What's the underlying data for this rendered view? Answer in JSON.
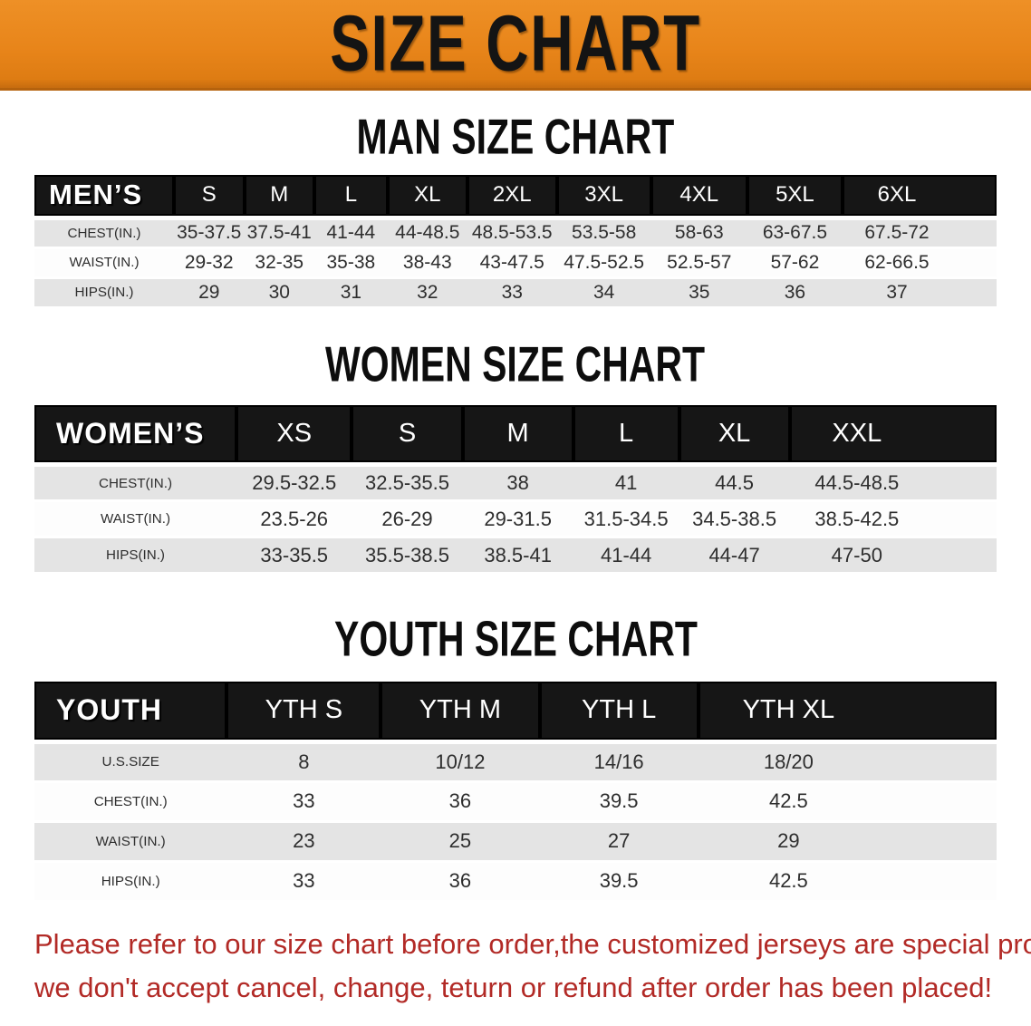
{
  "banner": {
    "title": "SIZE CHART",
    "bg_color": "#e8851a",
    "text_color": "#141414"
  },
  "sections": [
    {
      "id": "men",
      "heading": "MAN SIZE CHART",
      "header_label": "MEN’S",
      "columns": [
        "S",
        "M",
        "L",
        "XL",
        "2XL",
        "3XL",
        "4XL",
        "5XL",
        "6XL"
      ],
      "rows": [
        {
          "label": "CHEST(IN.)",
          "values": [
            "35-37.5",
            "37.5-41",
            "41-44",
            "44-48.5",
            "48.5-53.5",
            "53.5-58",
            "58-63",
            "63-67.5",
            "67.5-72"
          ]
        },
        {
          "label": "WAIST(IN.)",
          "values": [
            "29-32",
            "32-35",
            "35-38",
            "38-43",
            "43-47.5",
            "47.5-52.5",
            "52.5-57",
            "57-62",
            "62-66.5"
          ]
        },
        {
          "label": "HIPS(IN.)",
          "values": [
            "29",
            "30",
            "31",
            "32",
            "33",
            "34",
            "35",
            "36",
            "37"
          ]
        }
      ]
    },
    {
      "id": "women",
      "heading": "WOMEN SIZE CHART",
      "header_label": "WOMEN’S",
      "columns": [
        "XS",
        "S",
        "M",
        "L",
        "XL",
        "XXL"
      ],
      "rows": [
        {
          "label": "CHEST(IN.)",
          "values": [
            "29.5-32.5",
            "32.5-35.5",
            "38",
            "41",
            "44.5",
            "44.5-48.5"
          ]
        },
        {
          "label": "WAIST(IN.)",
          "values": [
            "23.5-26",
            "26-29",
            "29-31.5",
            "31.5-34.5",
            "34.5-38.5",
            "38.5-42.5"
          ]
        },
        {
          "label": "HIPS(IN.)",
          "values": [
            "33-35.5",
            "35.5-38.5",
            "38.5-41",
            "41-44",
            "44-47",
            "47-50"
          ]
        }
      ]
    },
    {
      "id": "youth",
      "heading": "YOUTH SIZE CHART",
      "header_label": "YOUTH",
      "columns": [
        "YTH S",
        "YTH M",
        "YTH L",
        "YTH XL"
      ],
      "rows": [
        {
          "label": "U.S.SIZE",
          "values": [
            "8",
            "10/12",
            "14/16",
            "18/20"
          ]
        },
        {
          "label": "CHEST(IN.)",
          "values": [
            "33",
            "36",
            "39.5",
            "42.5"
          ]
        },
        {
          "label": "WAIST(IN.)",
          "values": [
            "23",
            "25",
            "27",
            "29"
          ]
        },
        {
          "label": "HIPS(IN.)",
          "values": [
            "33",
            "36",
            "39.5",
            "42.5"
          ]
        }
      ]
    }
  ],
  "disclaimer": {
    "line1": "Please refer to our size chart before order,the customized jerseys are special products,",
    "line2": "we don't accept cancel, change, teturn or refund after order has been placed!",
    "color": "#b22a26"
  }
}
